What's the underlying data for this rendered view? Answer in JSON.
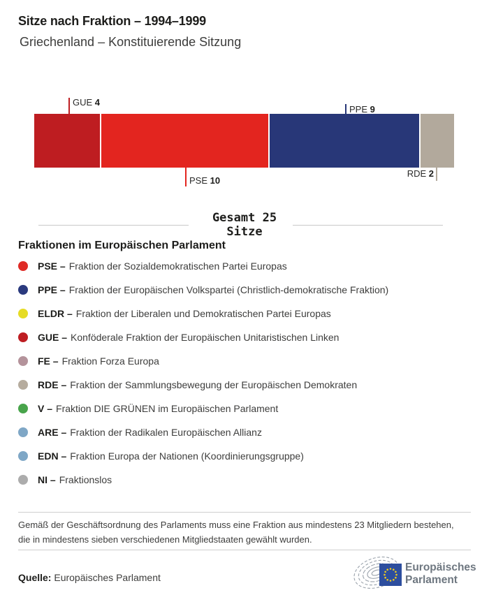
{
  "header": {
    "title": "Sitze nach Fraktion – 1994–1999",
    "subtitle": "Griechenland – Konstituierende Sitzung"
  },
  "chart_data": {
    "type": "bar",
    "variant": "stacked-horizontal",
    "title": "Sitze nach Fraktion – 1994–1999",
    "subtitle": "Griechenland – Konstituierende Sitzung",
    "total_seats": 25,
    "total_label_line1": "Gesamt 25",
    "total_label_line2": "Sitze",
    "categories": [
      "GUE",
      "PSE",
      "PPE",
      "RDE"
    ],
    "values": [
      4,
      10,
      9,
      2
    ],
    "segments": [
      {
        "code": "GUE",
        "seats": 4,
        "color": "#be1d21",
        "label_position": "above"
      },
      {
        "code": "PSE",
        "seats": 10,
        "color": "#e3251f",
        "label_position": "below"
      },
      {
        "code": "PPE",
        "seats": 9,
        "color": "#283778",
        "label_position": "above"
      },
      {
        "code": "RDE",
        "seats": 2,
        "color": "#b2a99c",
        "label_position": "below"
      }
    ]
  },
  "legend": {
    "heading": "Fraktionen im Europäischen Parlament",
    "items": [
      {
        "code": "PSE –",
        "name": "Fraktion der Sozialdemokratischen Partei Europas",
        "color": "#df2b26"
      },
      {
        "code": "PPE –",
        "name": "Fraktion der Europäischen Volkspartei (Christlich-demokratische Fraktion)",
        "color": "#2a3a7e"
      },
      {
        "code": "ELDR –",
        "name": "Fraktion der Liberalen und Demokratischen Partei Europas",
        "color": "#e6dc25"
      },
      {
        "code": "GUE –",
        "name": "Konföderale Fraktion der Europäischen Unitaristischen Linken",
        "color": "#be1d22"
      },
      {
        "code": "FE –",
        "name": "Fraktion Forza Europa",
        "color": "#b4939b"
      },
      {
        "code": "RDE –",
        "name": "Fraktion der Sammlungsbewegung der Europäischen Demokraten",
        "color": "#b6ac9e"
      },
      {
        "code": "V –",
        "name": "Fraktion DIE GRÜNEN im Europäischen Parlament",
        "color": "#48a44b"
      },
      {
        "code": "ARE –",
        "name": "Fraktion der Radikalen Europäischen Allianz",
        "color": "#7fa7c6"
      },
      {
        "code": "EDN –",
        "name": "Fraktion Europa der Nationen (Koordinierungsgruppe)",
        "color": "#7fa7c6"
      },
      {
        "code": "NI –",
        "name": "Fraktionslos",
        "color": "#acacac"
      }
    ]
  },
  "footnote": "Gemäß der Geschäftsordnung des Parlaments muss eine Fraktion aus mindestens 23 Mitgliedern bestehen, die in mindestens sieben verschiedenen Mitgliedstaaten gewählt wurden.",
  "source": {
    "label": "Quelle:",
    "value": "Europäisches Parlament"
  },
  "logo": {
    "line1": "Europäisches",
    "line2": "Parlament"
  }
}
